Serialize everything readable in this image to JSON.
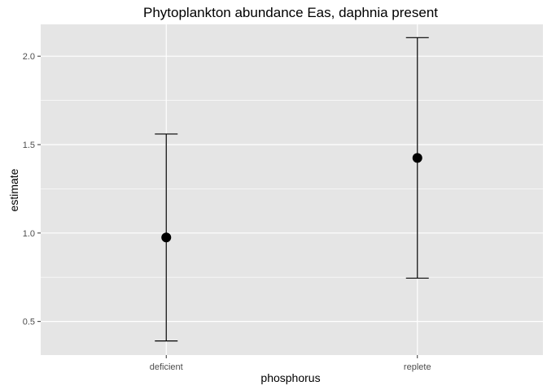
{
  "chart_data": {
    "type": "errorbar",
    "title": "Phytoplankton abundance Eas, daphnia present",
    "xlabel": "phosphorus",
    "ylabel": "estimate",
    "categories": [
      "deficient",
      "replete"
    ],
    "points": [
      {
        "category": "deficient",
        "estimate": 0.975,
        "lower": 0.39,
        "upper": 1.56
      },
      {
        "category": "replete",
        "estimate": 1.425,
        "lower": 0.745,
        "upper": 2.105
      }
    ],
    "ylim": [
      0.31,
      2.18
    ],
    "yticks": [
      0.5,
      1.0,
      1.5,
      2.0
    ],
    "ytick_labels": [
      "0.5",
      "1.0",
      "1.5",
      "2.0"
    ],
    "grid": true,
    "colors": {
      "panel": "#e5e5e5",
      "grid": "#ffffff",
      "marks": "#000000"
    }
  }
}
